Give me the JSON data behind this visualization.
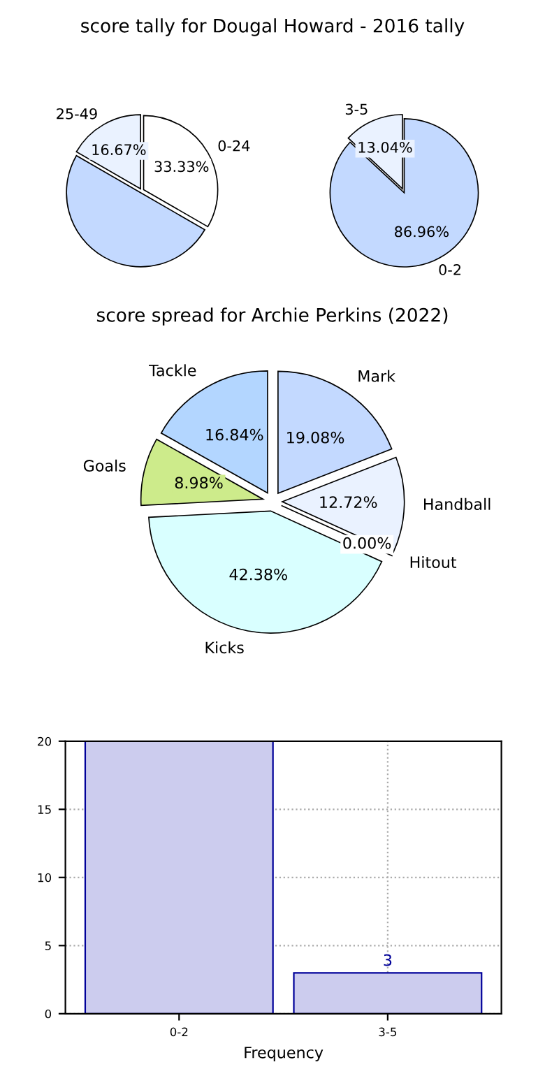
{
  "chart_data": [
    {
      "type": "pie",
      "categories": [
        "0-24",
        null,
        "25-49"
      ],
      "values": [
        33.33,
        50,
        16.67
      ],
      "value_labels": [
        "33.33%",
        null,
        "16.67%"
      ],
      "colors": [
        "#ffffff",
        "#c3d9ff",
        "#eaf2ff"
      ]
    },
    {
      "type": "pie",
      "categories": [
        "0-2",
        "3-5"
      ],
      "values": [
        86.96,
        13.04
      ],
      "value_labels": [
        "86.96%",
        "13.04%"
      ],
      "colors": [
        "#c3d9ff",
        "#eaf2ff"
      ]
    },
    {
      "type": "pie",
      "title": "score spread for Archie Perkins (2022)",
      "categories": [
        "Mark",
        "Handball",
        "Hitout",
        "Kicks",
        "Goals",
        "Tackle"
      ],
      "values": [
        19.08,
        12.72,
        0.0,
        42.38,
        8.98,
        16.84
      ],
      "value_labels": [
        "19.08%",
        "12.72%",
        "0.00%",
        "42.38%",
        "8.98%",
        "16.84%"
      ],
      "colors": [
        "#c3d9ff",
        "#eaf2ff",
        "#ffffff",
        "#d9ffff",
        "#cdeb8b",
        "#b3d6ff"
      ]
    },
    {
      "type": "bar",
      "title": "score tally for Dougal Howard - 2016 tally",
      "xlabel": "Frequency",
      "categories": [
        "0-2",
        "3-5"
      ],
      "values": [
        20,
        3
      ],
      "value_labels": [
        null,
        "3"
      ],
      "color": "#ccccee",
      "ylim": [
        0,
        20
      ],
      "yticks": [
        0,
        5,
        10,
        15,
        20
      ],
      "grid": true
    }
  ]
}
